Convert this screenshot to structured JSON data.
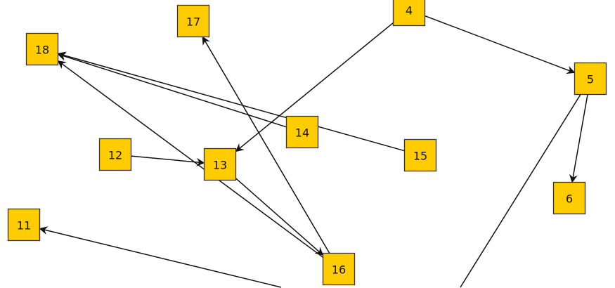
{
  "diagram": {
    "node_fill": "#ffcc00",
    "node_stroke": "#333333",
    "edge_color": "#111111",
    "nodes": [
      {
        "id": "4",
        "label": "4"
      },
      {
        "id": "5",
        "label": "5"
      },
      {
        "id": "6",
        "label": "6"
      },
      {
        "id": "11",
        "label": "11"
      },
      {
        "id": "12",
        "label": "12"
      },
      {
        "id": "13",
        "label": "13"
      },
      {
        "id": "14",
        "label": "14"
      },
      {
        "id": "15",
        "label": "15"
      },
      {
        "id": "16",
        "label": "16"
      },
      {
        "id": "17",
        "label": "17"
      },
      {
        "id": "18",
        "label": "18"
      }
    ],
    "edges": [
      {
        "from": "4",
        "to": "5"
      },
      {
        "from": "4",
        "to": "13"
      },
      {
        "from": "5",
        "to": "6"
      },
      {
        "from": "5",
        "to": ""
      },
      {
        "from": "12",
        "to": "13"
      },
      {
        "from": "13",
        "to": "16"
      },
      {
        "from": "16",
        "to": "17"
      },
      {
        "from": "16",
        "to": "18"
      },
      {
        "from": "14",
        "to": "18"
      },
      {
        "from": "15",
        "to": "18"
      },
      {
        "from": "",
        "to": "11"
      }
    ]
  }
}
